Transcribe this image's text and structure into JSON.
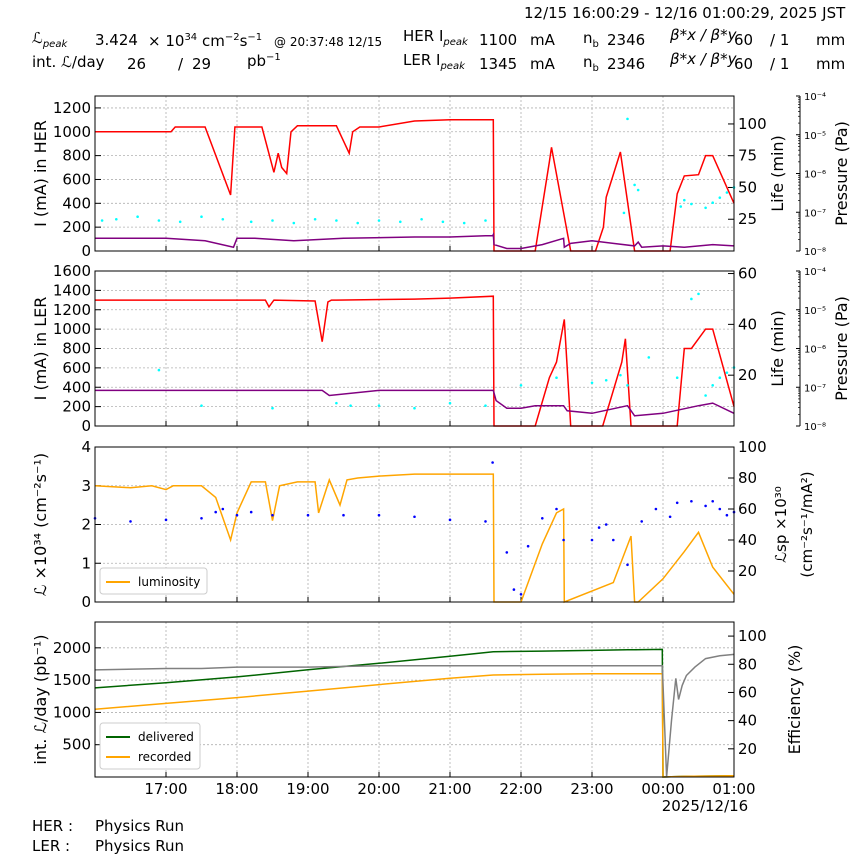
{
  "header": {
    "time_range": "12/15 16:00:29 - 12/16 01:00:29, 2025 JST",
    "lpeak_label": "ℒ",
    "lpeak_sub": "peak",
    "lpeak_value": "3.424",
    "lpeak_mult": "× 10",
    "lpeak_exp": "34",
    "lpeak_unit": "cm",
    "lpeak_unit_exp1": "−2",
    "lpeak_unit_s": "s",
    "lpeak_unit_exp2": "−1",
    "lpeak_at": "@ 20:37:48 12/15",
    "int_label": "int. ℒ/day",
    "int_recorded": "26",
    "int_slash": "/",
    "int_delivered": "29",
    "int_unit": "pb",
    "int_unit_exp": "−1",
    "her_label": "HER I",
    "her_sub": "peak",
    "her_value": "1100",
    "her_unit": "mA",
    "ler_label": "LER I",
    "ler_sub": "peak",
    "ler_value": "1345",
    "ler_unit": "mA",
    "nb_label": "n",
    "nb_sub": "b",
    "her_nb": "2346",
    "ler_nb": "2346",
    "beta_label": "β*x / β*y",
    "her_beta_x": "60",
    "her_beta_y": "/ 1",
    "ler_beta_x": "60",
    "ler_beta_y": "/ 1",
    "beta_unit": "mm"
  },
  "footer": {
    "her_label": "HER :",
    "her_status": "Physics Run",
    "ler_label": "LER :",
    "ler_status": "Physics Run"
  },
  "colors": {
    "current": "#ff0000",
    "lifetime": "#800080",
    "pressure": "#00ffff",
    "luminosity": "#ffa500",
    "specific_lumi": "#0000ff",
    "delivered": "#006400",
    "recorded": "#ffa500",
    "efficiency": "#808080",
    "grid": "#b0b0b0"
  },
  "chart_data": [
    {
      "id": "her",
      "type": "line",
      "ylabel": "I (mA) in HER",
      "ylabel2": "Life (min)",
      "ylabel3": "Pressure (Pa)",
      "ylim": [
        0,
        1300
      ],
      "yticks": [
        0,
        200,
        400,
        600,
        800,
        1000,
        1200
      ],
      "y2lim": [
        0,
        122
      ],
      "y2ticks": [
        25,
        50,
        75,
        100
      ],
      "y3ticks": [
        "10⁻⁸",
        "10⁻⁷",
        "10⁻⁶",
        "10⁻⁵",
        "10⁻⁴"
      ],
      "grid": true,
      "series": [
        {
          "role": "current",
          "x": [
            0,
            1.07,
            1.13,
            1.55,
            1.91,
            1.97,
            2.35,
            2.52,
            2.58,
            2.63,
            2.7,
            2.76,
            2.85,
            3.15,
            3.4,
            3.58,
            3.63,
            3.73,
            4.0,
            4.5,
            5.0,
            5.61,
            5.62,
            5.85,
            6.2,
            6.4,
            6.43,
            6.7,
            6.9,
            7.05,
            7.16,
            7.2,
            7.4,
            7.6,
            7.75,
            7.9,
            7.95,
            8.1,
            8.2,
            8.3,
            8.5,
            8.6,
            8.7,
            9.0
          ],
          "y": [
            1000,
            1000,
            1040,
            1040,
            470,
            1040,
            1040,
            660,
            820,
            700,
            650,
            1000,
            1050,
            1050,
            1050,
            820,
            1000,
            1040,
            1040,
            1090,
            1100,
            1100,
            0,
            0,
            0,
            750,
            870,
            0,
            0,
            0,
            200,
            450,
            830,
            0,
            0,
            0,
            0,
            0,
            480,
            630,
            640,
            800,
            800,
            400
          ]
        },
        {
          "role": "lifetime",
          "x": [
            0,
            1.0,
            1.55,
            1.95,
            2.0,
            2.25,
            2.8,
            3.5,
            4.5,
            5.0,
            5.5,
            5.6,
            5.61,
            5.62,
            5.8,
            6.0,
            6.3,
            6.6,
            6.61,
            6.7,
            7.0,
            7.3,
            7.6,
            7.65,
            7.7,
            8.0,
            8.3,
            8.7,
            9.0
          ],
          "y": [
            10,
            10,
            8,
            3,
            10,
            10,
            8,
            10,
            11,
            11,
            12,
            12,
            13,
            5,
            2,
            2,
            5,
            10,
            3,
            6,
            8,
            6,
            4,
            7,
            3,
            4,
            3,
            5,
            4
          ]
        },
        {
          "role": "pressure",
          "x": [
            0.1,
            0.3,
            0.6,
            0.9,
            1.2,
            1.5,
            1.8,
            2.2,
            2.5,
            2.8,
            3.1,
            3.4,
            3.7,
            4.0,
            4.3,
            4.6,
            4.9,
            5.2,
            5.5,
            7.45,
            7.5,
            7.6,
            7.65,
            8.25,
            8.3,
            8.4,
            8.6,
            8.7,
            8.8,
            8.9,
            9.0
          ],
          "y": [
            24,
            25,
            27,
            24,
            23,
            27,
            25,
            23,
            24,
            22,
            25,
            24,
            22,
            24,
            23,
            25,
            23,
            22,
            24,
            30,
            104,
            52,
            48,
            35,
            40,
            37,
            34,
            38,
            42,
            46,
            50
          ]
        }
      ]
    },
    {
      "id": "ler",
      "type": "line",
      "ylabel": "I (mA) in LER",
      "ylabel2": "Life (min)",
      "ylabel3": "Pressure (Pa)",
      "ylim": [
        0,
        1600
      ],
      "yticks": [
        0,
        200,
        400,
        600,
        800,
        1000,
        1200,
        1400,
        1600
      ],
      "y2lim": [
        0,
        61
      ],
      "y2ticks": [
        20,
        40,
        60
      ],
      "y3ticks": [
        "10⁻⁸",
        "10⁻⁷",
        "10⁻⁶",
        "10⁻⁵",
        "10⁻⁴"
      ],
      "grid": true,
      "series": [
        {
          "role": "current",
          "x": [
            0,
            2.4,
            2.45,
            2.52,
            3.1,
            3.2,
            3.28,
            3.33,
            3.4,
            4.5,
            5.0,
            5.61,
            5.62,
            6.2,
            6.4,
            6.5,
            6.61,
            6.7,
            7.15,
            7.42,
            7.47,
            7.55,
            7.6,
            8.2,
            8.3,
            8.4,
            8.6,
            8.7,
            9.0
          ],
          "y": [
            1300,
            1300,
            1230,
            1300,
            1290,
            870,
            1280,
            1300,
            1300,
            1310,
            1320,
            1340,
            0,
            0,
            500,
            660,
            1100,
            0,
            0,
            660,
            900,
            0,
            0,
            0,
            800,
            800,
            1000,
            1000,
            200
          ]
        },
        {
          "role": "lifetime",
          "x": [
            0,
            1.5,
            2.5,
            3.2,
            3.3,
            4.0,
            5.0,
            5.61,
            5.65,
            5.8,
            6.0,
            6.2,
            6.6,
            6.65,
            7.0,
            7.5,
            7.6,
            8.0,
            8.5,
            8.7,
            9.0
          ],
          "y": [
            14,
            14,
            14,
            14,
            12,
            14,
            14,
            14,
            10,
            7,
            7,
            8,
            8,
            6,
            5,
            8,
            4,
            5,
            8,
            9,
            5
          ]
        },
        {
          "role": "pressure",
          "x": [
            0.9,
            1.5,
            2.5,
            3.4,
            3.6,
            4.0,
            4.5,
            5.0,
            5.5,
            6.0,
            6.5,
            7.0,
            7.2,
            7.4,
            7.5,
            7.8,
            8.2,
            8.4,
            8.5,
            8.6,
            8.7,
            8.8,
            8.9,
            9.0
          ],
          "y": [
            22,
            8,
            7,
            9,
            8,
            8,
            7,
            9,
            8,
            16,
            19,
            17,
            18,
            20,
            16,
            27,
            19,
            50,
            52,
            12,
            16,
            19,
            21,
            23
          ]
        }
      ]
    },
    {
      "id": "lumi",
      "type": "line",
      "ylabel": "ℒ ×10³⁴ (cm⁻²s⁻¹)",
      "ylabel2": "ℒsp ×10³⁰ (cm⁻²s⁻¹/mA²)",
      "ylim": [
        0,
        4
      ],
      "yticks": [
        0,
        1,
        2,
        3,
        4
      ],
      "y2lim": [
        0,
        100
      ],
      "y2ticks": [
        20,
        40,
        60,
        80,
        100
      ],
      "grid": true,
      "legend": "lower-left",
      "series": [
        {
          "name": "luminosity",
          "role": "luminosity",
          "x": [
            0,
            0.5,
            0.8,
            1.0,
            1.1,
            1.5,
            1.7,
            1.91,
            2.0,
            2.2,
            2.4,
            2.5,
            2.6,
            2.85,
            3.1,
            3.15,
            3.3,
            3.45,
            3.55,
            3.7,
            4.0,
            4.5,
            5.0,
            5.5,
            5.61,
            5.62,
            6.0,
            6.3,
            6.5,
            6.6,
            6.61,
            7.3,
            7.55,
            7.6,
            7.65,
            8.0,
            8.3,
            8.5,
            8.7,
            9.0
          ],
          "y": [
            3.0,
            2.95,
            3.0,
            2.9,
            3.0,
            3.0,
            2.7,
            1.6,
            2.3,
            3.1,
            3.1,
            2.1,
            3.0,
            3.1,
            3.1,
            2.3,
            3.15,
            2.5,
            3.15,
            3.2,
            3.25,
            3.3,
            3.3,
            3.3,
            3.3,
            0,
            0,
            1.5,
            2.3,
            2.4,
            0,
            0.5,
            1.7,
            0,
            0,
            0.6,
            1.3,
            1.8,
            0.9,
            0.2
          ]
        },
        {
          "role": "specific_lumi",
          "x": [
            0,
            0.5,
            1.0,
            1.5,
            1.7,
            1.8,
            2.0,
            2.2,
            2.5,
            3.0,
            3.5,
            4.0,
            4.5,
            5.0,
            5.5,
            5.6,
            5.8,
            5.9,
            6.0,
            6.1,
            6.3,
            6.5,
            6.6,
            7.0,
            7.1,
            7.2,
            7.3,
            7.5,
            7.7,
            7.9,
            8.1,
            8.2,
            8.4,
            8.6,
            8.7,
            8.8,
            8.9,
            9.0
          ],
          "y": [
            54,
            52,
            53,
            54,
            58,
            60,
            56,
            58,
            56,
            56,
            56,
            56,
            55,
            53,
            52,
            90,
            32,
            8,
            5,
            36,
            54,
            60,
            40,
            40,
            48,
            50,
            40,
            24,
            52,
            60,
            55,
            64,
            65,
            62,
            65,
            60,
            56,
            58
          ]
        }
      ]
    },
    {
      "id": "integrated",
      "type": "line",
      "ylabel": "int. ℒ/day (pb⁻¹)",
      "ylabel2": "Efficiency (%)",
      "ylim": [
        0,
        2400
      ],
      "yticks": [
        500,
        1000,
        1500,
        2000
      ],
      "y2lim": [
        0,
        110
      ],
      "y2ticks": [
        20,
        40,
        60,
        80,
        100
      ],
      "xticks": [
        "17:00",
        "18:00",
        "19:00",
        "20:00",
        "21:00",
        "22:00",
        "23:00",
        "00:00",
        "01:00"
      ],
      "xtick_values": [
        1,
        2,
        3,
        4,
        5,
        6,
        7,
        8,
        9
      ],
      "xdate": "2025/12/16",
      "xlim": [
        0,
        9
      ],
      "grid": true,
      "legend": "lower-left",
      "series": [
        {
          "name": "delivered",
          "role": "delivered",
          "x": [
            0,
            1,
            2,
            3,
            4,
            5,
            5.61,
            6.3,
            7.0,
            7.5,
            7.99,
            8.0,
            8.3,
            9.0
          ],
          "y": [
            1380,
            1460,
            1550,
            1660,
            1760,
            1870,
            1940,
            1950,
            1960,
            1970,
            1975,
            0,
            10,
            20
          ]
        },
        {
          "name": "recorded",
          "role": "recorded",
          "x": [
            0,
            1,
            2,
            3,
            4,
            5,
            5.61,
            6.3,
            7.0,
            7.5,
            7.99,
            8.0,
            8.3,
            9.0
          ],
          "y": [
            1050,
            1140,
            1230,
            1330,
            1430,
            1530,
            1580,
            1590,
            1600,
            1600,
            1600,
            0,
            10,
            20
          ]
        },
        {
          "role": "efficiency",
          "x": [
            0,
            1,
            1.2,
            1.5,
            2,
            3,
            4,
            5,
            5.6,
            6.5,
            7.5,
            7.99,
            8.05,
            8.12,
            8.18,
            8.22,
            8.27,
            8.33,
            8.45,
            8.6,
            8.8,
            9.0
          ],
          "y": [
            76,
            77,
            77,
            77,
            78,
            78,
            79,
            79,
            79,
            79,
            79,
            79,
            0,
            40,
            70,
            55,
            65,
            72,
            78,
            84,
            86,
            87
          ]
        }
      ]
    }
  ]
}
